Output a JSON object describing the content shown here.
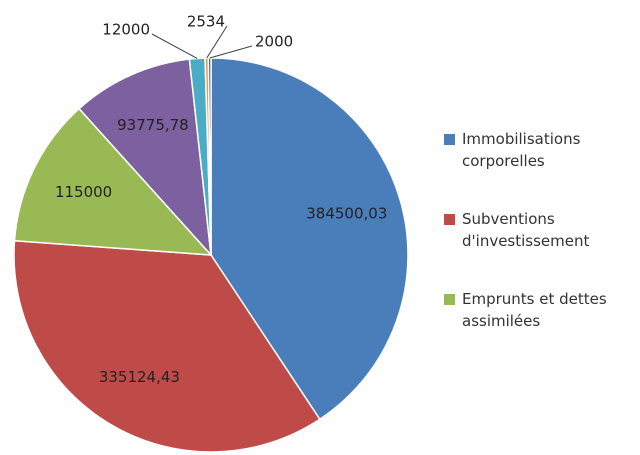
{
  "chart_data": {
    "type": "pie",
    "categories": [
      "Immobilisations corporelles",
      "Subventions d'investissement",
      "Emprunts et dettes assimilées",
      null,
      null,
      null,
      null
    ],
    "values": [
      384500.03,
      335124.43,
      115000,
      93775.78,
      12000,
      2534,
      2000
    ],
    "value_labels": [
      "384500,03",
      "335124,43",
      "115000",
      "93775,78",
      "12000",
      "2534",
      "2000"
    ],
    "colors": [
      "#4a7ebb",
      "#be4b48",
      "#98b954",
      "#7d60a0",
      "#4bacc6",
      "#f79646",
      "#2c4d75"
    ],
    "legend": "right"
  }
}
